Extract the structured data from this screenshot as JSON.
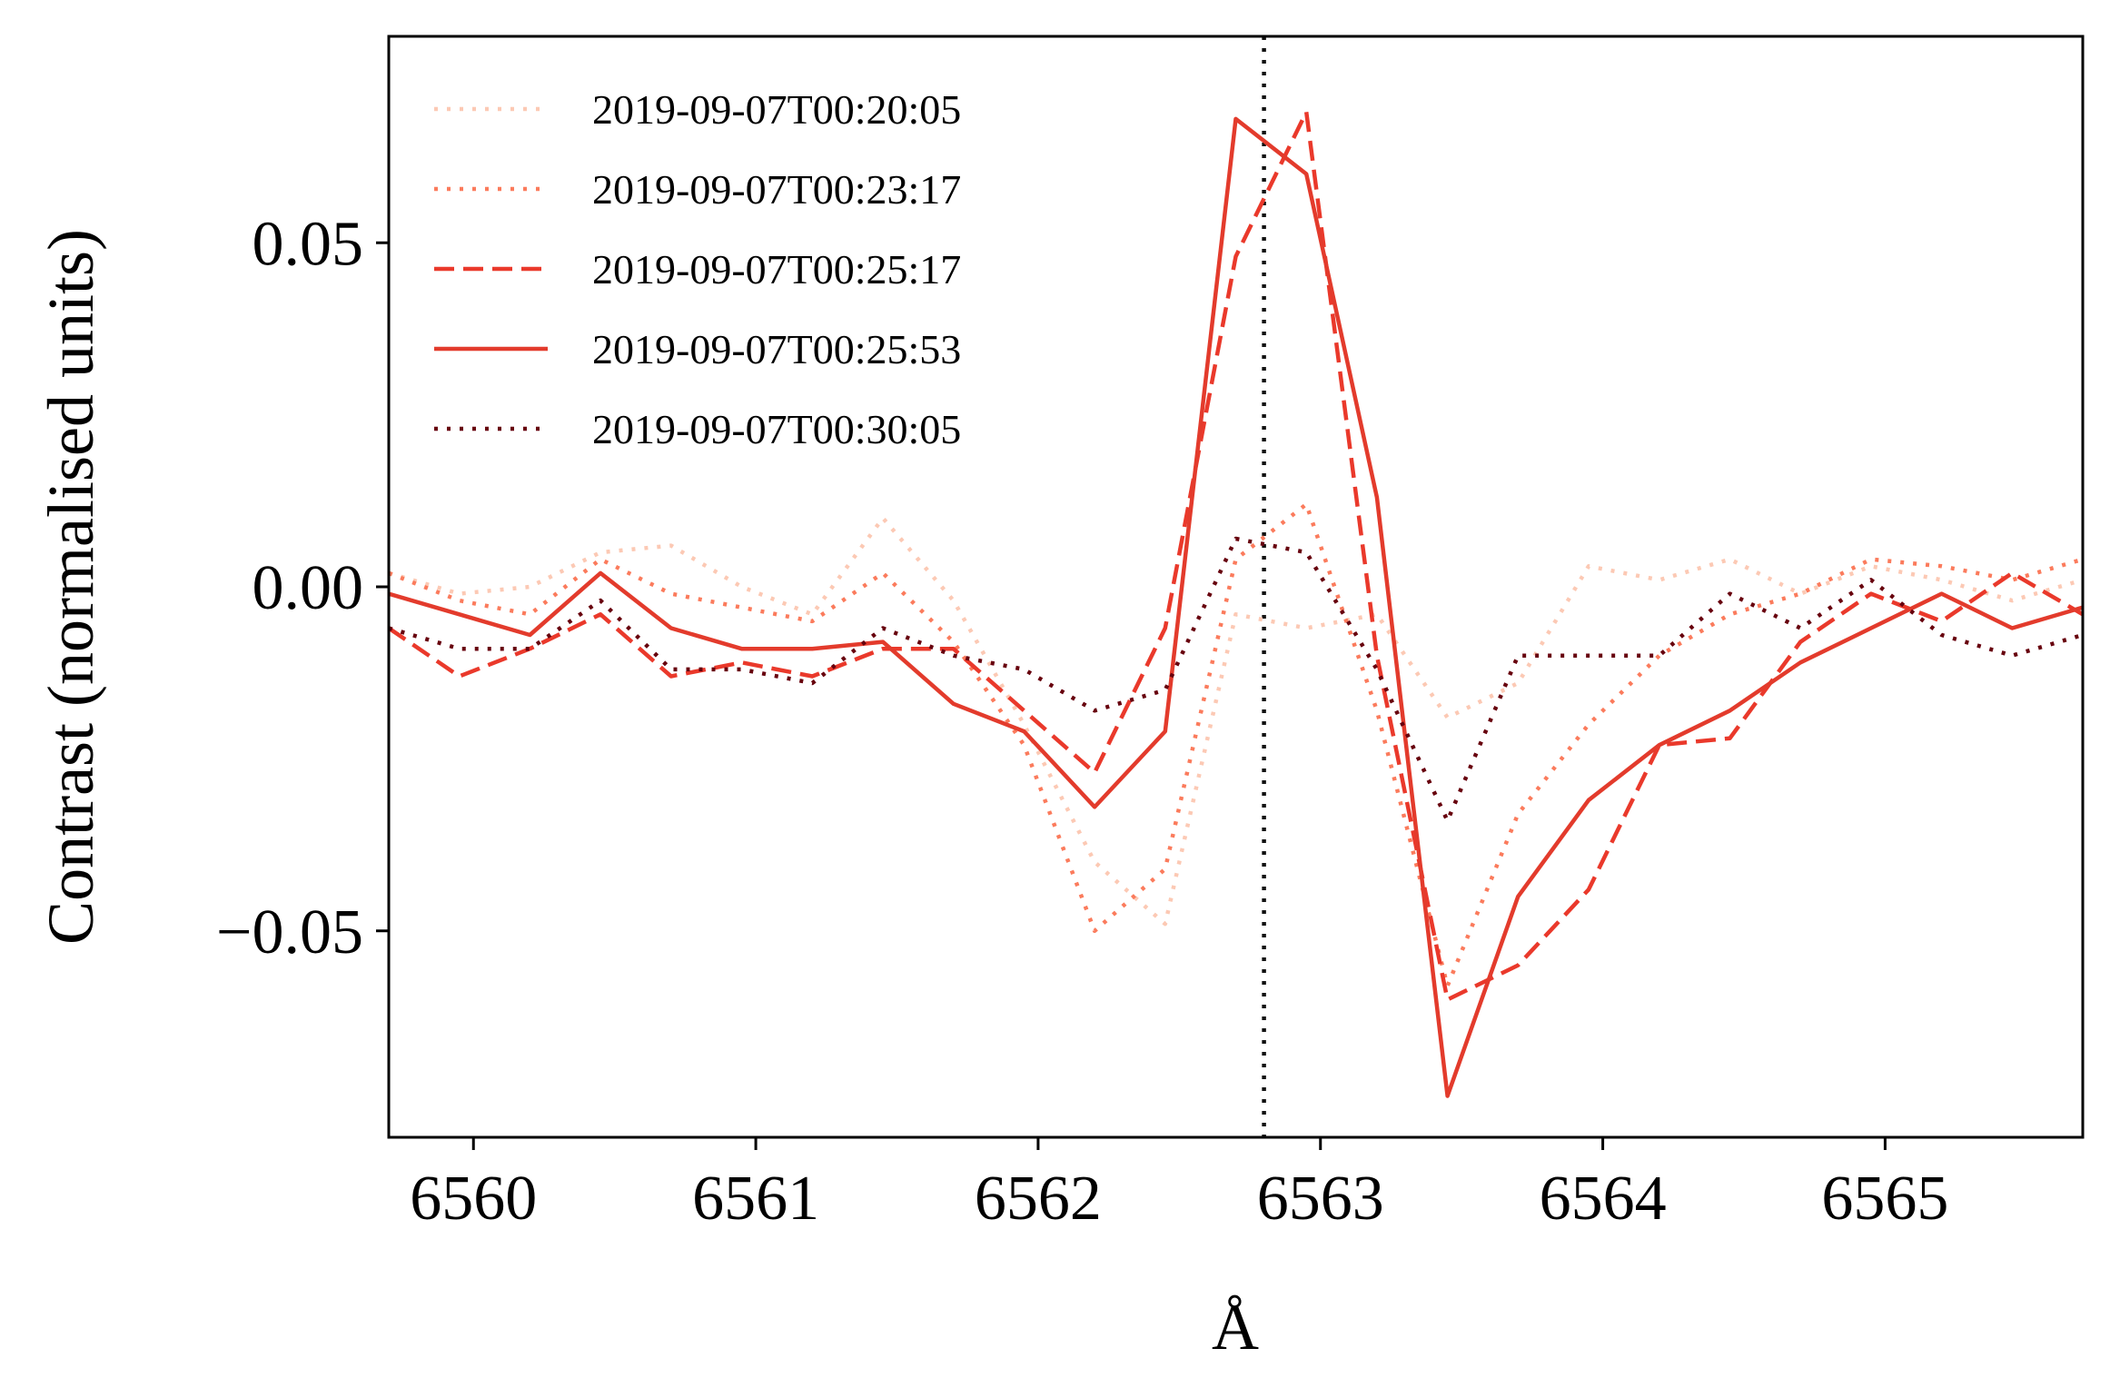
{
  "chart_data": {
    "type": "line",
    "title": "",
    "xlabel": "Å",
    "ylabel": "Contrast (normalised units)",
    "xlim": [
      6559.7,
      6565.7
    ],
    "ylim": [
      -0.08,
      0.08
    ],
    "xticks": [
      {
        "value": 6560,
        "label": "6560"
      },
      {
        "value": 6561,
        "label": "6561"
      },
      {
        "value": 6562,
        "label": "6562"
      },
      {
        "value": 6563,
        "label": "6563"
      },
      {
        "value": 6564,
        "label": "6564"
      },
      {
        "value": 6565,
        "label": "6565"
      }
    ],
    "yticks": [
      {
        "value": 0.05,
        "label": "0.05"
      },
      {
        "value": 0.0,
        "label": "0.00"
      },
      {
        "value": -0.05,
        "label": "−0.05"
      }
    ],
    "grid": false,
    "legend_position": "top-left",
    "reference_line": {
      "x": 6562.8,
      "style": "dotted",
      "color": "#111111"
    },
    "x": [
      6559.7,
      6559.95,
      6560.2,
      6560.45,
      6560.7,
      6560.95,
      6561.2,
      6561.45,
      6561.7,
      6561.95,
      6562.2,
      6562.45,
      6562.7,
      6562.95,
      6563.2,
      6563.45,
      6563.7,
      6563.95,
      6564.2,
      6564.45,
      6564.7,
      6564.95,
      6565.2,
      6565.45,
      6565.7
    ],
    "series": [
      {
        "name": "2019-09-07T00:20:05",
        "color": "#fcc9b4",
        "style": "dotted",
        "values": [
          0.002,
          -0.001,
          0.0,
          0.005,
          0.006,
          0.0,
          -0.004,
          0.01,
          -0.002,
          -0.02,
          -0.04,
          -0.049,
          -0.004,
          -0.006,
          -0.004,
          -0.019,
          -0.014,
          0.003,
          0.001,
          0.004,
          -0.001,
          0.003,
          0.001,
          -0.002,
          0.001
        ]
      },
      {
        "name": "2019-09-07T00:23:17",
        "color": "#fb7b5c",
        "style": "dotted",
        "values": [
          0.002,
          -0.002,
          -0.004,
          0.004,
          -0.001,
          -0.003,
          -0.005,
          0.002,
          -0.008,
          -0.023,
          -0.05,
          -0.041,
          0.004,
          0.012,
          -0.018,
          -0.058,
          -0.033,
          -0.02,
          -0.01,
          -0.004,
          -0.001,
          0.004,
          0.003,
          0.001,
          0.004
        ]
      },
      {
        "name": "2019-09-07T00:25:17",
        "color": "#ea392b",
        "style": "dashed",
        "values": [
          -0.006,
          -0.013,
          -0.009,
          -0.004,
          -0.013,
          -0.011,
          -0.013,
          -0.009,
          -0.009,
          -0.018,
          -0.027,
          -0.006,
          0.048,
          0.069,
          -0.01,
          -0.06,
          -0.055,
          -0.044,
          -0.023,
          -0.022,
          -0.008,
          -0.001,
          -0.005,
          0.002,
          -0.004
        ]
      },
      {
        "name": "2019-09-07T00:25:53",
        "color": "#e33b2c",
        "style": "solid",
        "values": [
          -0.001,
          -0.004,
          -0.007,
          0.002,
          -0.006,
          -0.009,
          -0.009,
          -0.008,
          -0.017,
          -0.021,
          -0.032,
          -0.021,
          0.068,
          0.06,
          0.013,
          -0.074,
          -0.045,
          -0.031,
          -0.023,
          -0.018,
          -0.011,
          -0.006,
          -0.001,
          -0.006,
          -0.003
        ]
      },
      {
        "name": "2019-09-07T00:30:05",
        "color": "#67000d",
        "style": "dotted",
        "values": [
          -0.006,
          -0.009,
          -0.009,
          -0.002,
          -0.012,
          -0.012,
          -0.014,
          -0.006,
          -0.01,
          -0.012,
          -0.018,
          -0.015,
          0.007,
          0.005,
          -0.012,
          -0.034,
          -0.01,
          -0.01,
          -0.01,
          -0.001,
          -0.006,
          0.001,
          -0.007,
          -0.01,
          -0.007
        ]
      }
    ]
  }
}
